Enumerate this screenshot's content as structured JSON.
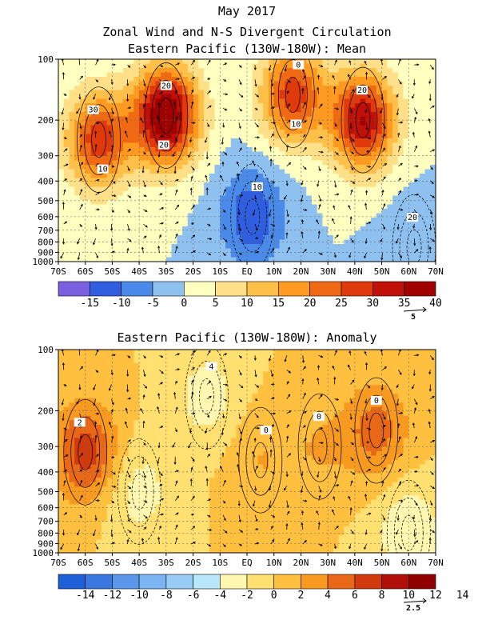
{
  "figure_title": "May 2017",
  "chart_data": [
    {
      "type": "heatmap",
      "title": "Zonal Wind and N-S Divergent Circulation",
      "subtitle": "Eastern Pacific (130W-180W): Mean",
      "x_ticks": [
        "70S",
        "60S",
        "50S",
        "40S",
        "30S",
        "20S",
        "10S",
        "EQ",
        "10N",
        "20N",
        "30N",
        "40N",
        "50N",
        "60N",
        "70N"
      ],
      "y_ticks": [
        "100",
        "200",
        "300",
        "400",
        "500",
        "600",
        "700",
        "800",
        "900",
        "1000"
      ],
      "ylim": [
        1000,
        100
      ],
      "y_scale": "log",
      "colorbar": {
        "colors": [
          "#7a60e0",
          "#2f5fe0",
          "#4a8ae8",
          "#8ec0f0",
          "#ffffc0",
          "#ffe088",
          "#ffc04a",
          "#ff9a20",
          "#f06a14",
          "#e03a0c",
          "#c01008",
          "#a00000"
        ],
        "labels": [
          "-15",
          "-10",
          "-5",
          "0",
          "5",
          "10",
          "15",
          "20",
          "25",
          "30",
          "35",
          "40"
        ]
      },
      "vector_reference": "5",
      "contour_labels": [
        "30",
        "20",
        "0",
        "20",
        "10",
        "20",
        "10",
        "20",
        "10"
      ],
      "features": [
        {
          "lat": -55,
          "p": 250,
          "peak": 28
        },
        {
          "lat": -30,
          "p": 190,
          "peak": 42
        },
        {
          "lat": 17,
          "p": 150,
          "peak": 28
        },
        {
          "lat": 43,
          "p": 200,
          "peak": 35
        },
        {
          "lat": 2,
          "p": 600,
          "peak": -14
        },
        {
          "lat": 62,
          "p": 850,
          "peak": -4
        }
      ]
    },
    {
      "type": "heatmap",
      "title": "Eastern Pacific (130W-180W): Anomaly",
      "x_ticks": [
        "70S",
        "60S",
        "50S",
        "40S",
        "30S",
        "20S",
        "10S",
        "EQ",
        "10N",
        "20N",
        "30N",
        "40N",
        "50N",
        "60N",
        "70N"
      ],
      "y_ticks": [
        "100",
        "200",
        "300",
        "400",
        "500",
        "600",
        "700",
        "800",
        "900",
        "1000"
      ],
      "ylim": [
        1000,
        100
      ],
      "y_scale": "log",
      "colorbar": {
        "colors": [
          "#1e5ed6",
          "#3a78e0",
          "#5a96ea",
          "#7ab4f2",
          "#98ccf6",
          "#b8e6fa",
          "#fff7b0",
          "#ffe070",
          "#ffc040",
          "#f89a20",
          "#e86818",
          "#d03a0c",
          "#b01008",
          "#900000"
        ],
        "labels": [
          "-14",
          "-12",
          "-10",
          "-8",
          "-6",
          "-4",
          "-2",
          "0",
          "2",
          "4",
          "6",
          "8",
          "10",
          "12",
          "14"
        ]
      },
      "vector_reference": "2.5",
      "contour_labels": [
        "2",
        "0",
        "0",
        "0",
        "4"
      ],
      "features": [
        {
          "lat": -60,
          "p": 320,
          "peak": 7
        },
        {
          "lat": 48,
          "p": 250,
          "peak": 5
        },
        {
          "lat": 5,
          "p": 350,
          "peak": 2
        },
        {
          "lat": 27,
          "p": 300,
          "peak": 2
        },
        {
          "lat": -15,
          "p": 170,
          "peak": -3
        },
        {
          "lat": -40,
          "p": 500,
          "peak": -3
        },
        {
          "lat": 60,
          "p": 800,
          "peak": -4
        }
      ]
    }
  ]
}
